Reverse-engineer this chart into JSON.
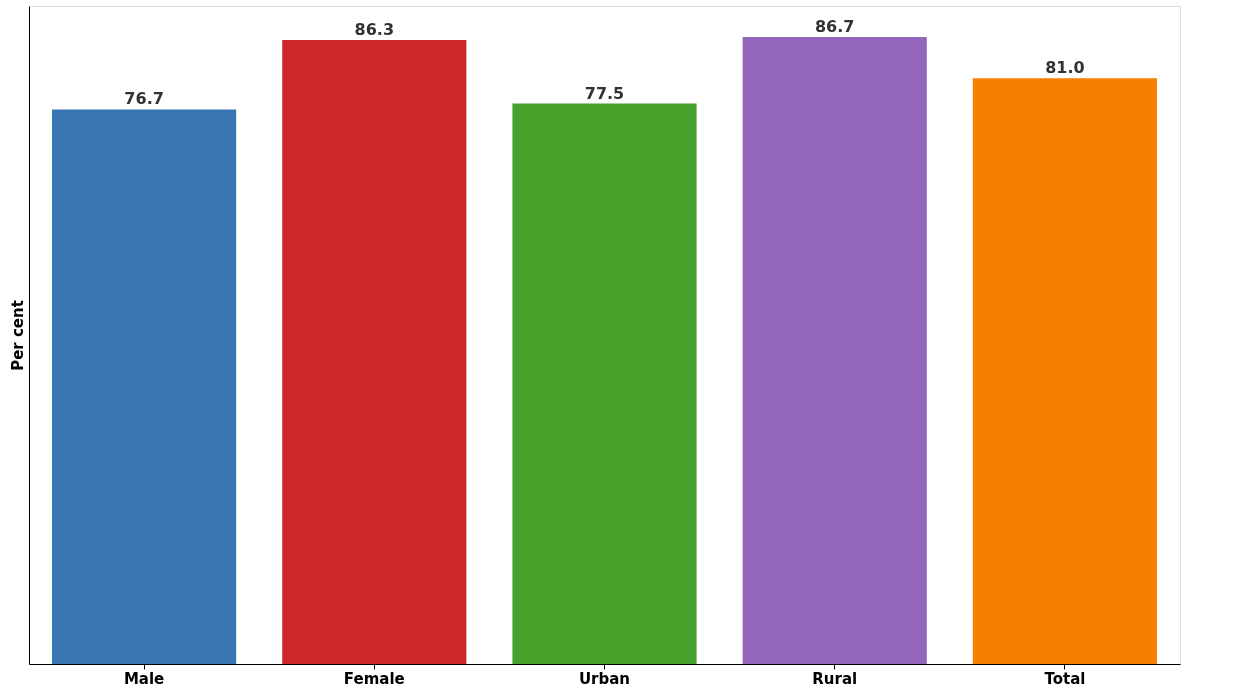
{
  "chart_data": {
    "type": "bar",
    "ylabel": "Per cent",
    "categories": [
      "Male",
      "Female",
      "Urban",
      "Rural",
      "Total"
    ],
    "values": [
      76.7,
      86.3,
      77.5,
      86.7,
      81.0
    ],
    "colors": [
      "#3776b3",
      "#cc2828",
      "#46a02a",
      "#9467bd",
      "#f77f00"
    ],
    "value_labels": [
      "76.7",
      "86.3",
      "77.5",
      "86.7",
      "81.0"
    ],
    "ylim": [
      0,
      91.0
    ],
    "tick_labels": "x",
    "grid": false
  }
}
